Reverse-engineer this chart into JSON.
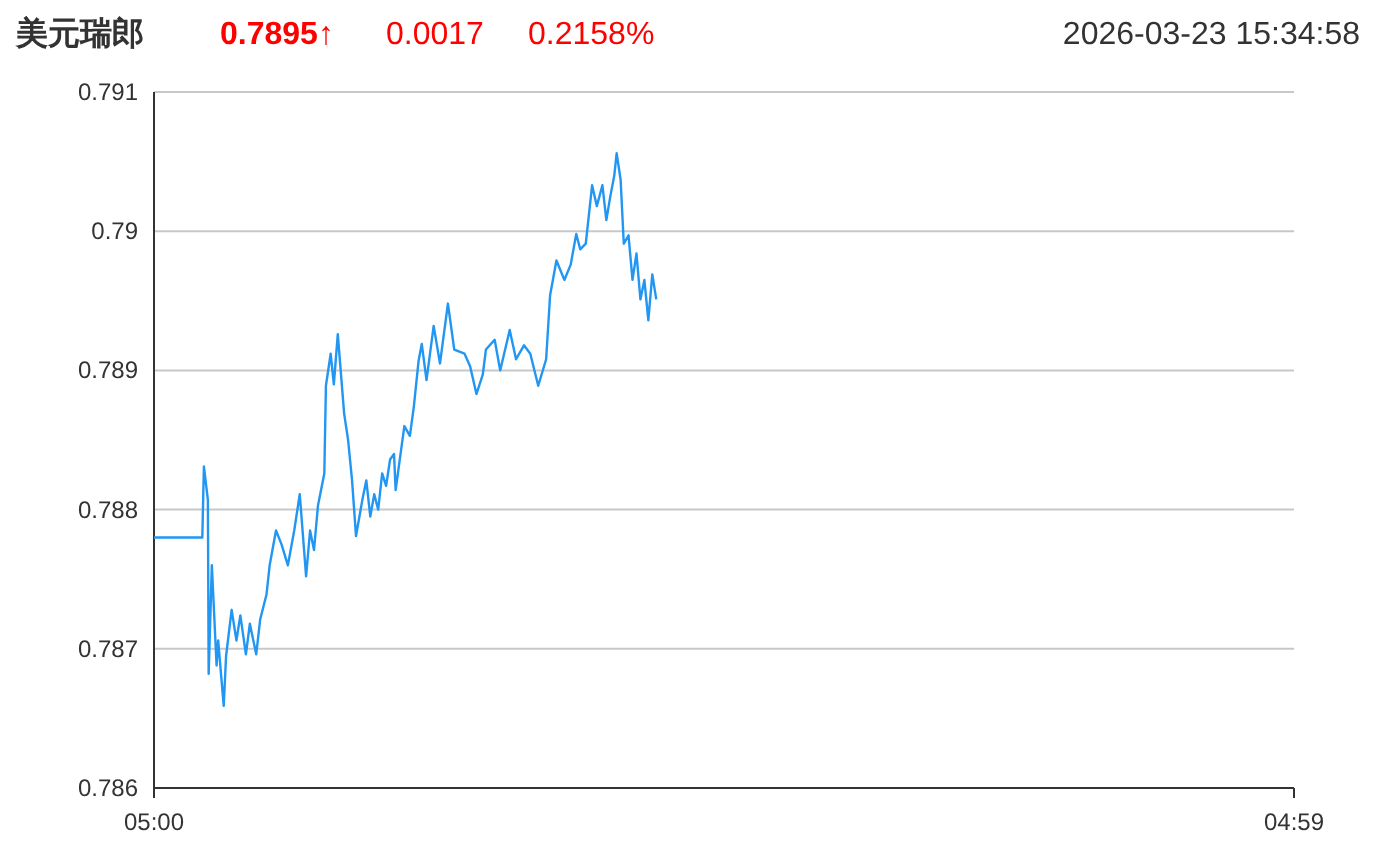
{
  "chart_data": {
    "type": "line",
    "title": "美元瑞郎",
    "annotations": [
      "0.7895↑",
      "0.0017",
      "0.2158%",
      "2026-03-23 15:34:58"
    ],
    "x": [
      "2026-03-23T05:00",
      "2026-03-23T06:01",
      "2026-03-23T06:03",
      "2026-03-23T06:08",
      "2026-03-23T06:09",
      "2026-03-23T06:13",
      "2026-03-23T06:19",
      "2026-03-23T06:21",
      "2026-03-23T06:28",
      "2026-03-23T06:31",
      "2026-03-23T06:38",
      "2026-03-23T06:44",
      "2026-03-23T06:49",
      "2026-03-23T06:56",
      "2026-03-23T07:01",
      "2026-03-23T07:09",
      "2026-03-23T07:14",
      "2026-03-23T07:22",
      "2026-03-23T07:26",
      "2026-03-23T07:34",
      "2026-03-23T07:41",
      "2026-03-23T07:49",
      "2026-03-23T07:57",
      "2026-03-23T08:04",
      "2026-03-23T08:12",
      "2026-03-23T08:17",
      "2026-03-23T08:22",
      "2026-03-23T08:27",
      "2026-03-23T08:35",
      "2026-03-23T08:37",
      "2026-03-23T08:43",
      "2026-03-23T08:47",
      "2026-03-23T08:52",
      "2026-03-23T09:00",
      "2026-03-23T09:05",
      "2026-03-23T09:10",
      "2026-03-23T09:15",
      "2026-03-23T09:23",
      "2026-03-23T09:28",
      "2026-03-23T09:33",
      "2026-03-23T09:38",
      "2026-03-23T09:43",
      "2026-03-23T09:48",
      "2026-03-23T09:53",
      "2026-03-23T09:58",
      "2026-03-23T10:03",
      "2026-03-23T10:05",
      "2026-03-23T10:16",
      "2026-03-23T10:23",
      "2026-03-23T10:28",
      "2026-03-23T10:34",
      "2026-03-23T10:38",
      "2026-03-23T10:44",
      "2026-03-23T10:53",
      "2026-03-23T11:01",
      "2026-03-23T11:11",
      "2026-03-23T11:19",
      "2026-03-23T11:32",
      "2026-03-23T11:39",
      "2026-03-23T11:47",
      "2026-03-23T11:55",
      "2026-03-23T11:59",
      "2026-03-23T12:10",
      "2026-03-23T12:17",
      "2026-03-23T12:29",
      "2026-03-23T12:37",
      "2026-03-23T12:47",
      "2026-03-23T12:55",
      "2026-03-23T13:05",
      "2026-03-23T13:15",
      "2026-03-23T13:20",
      "2026-03-23T13:28",
      "2026-03-23T13:38",
      "2026-03-23T13:46",
      "2026-03-23T13:53",
      "2026-03-23T13:58",
      "2026-03-23T14:05",
      "2026-03-23T14:13",
      "2026-03-23T14:19",
      "2026-03-23T14:26",
      "2026-03-23T14:31",
      "2026-03-23T14:36",
      "2026-03-23T14:41",
      "2026-03-23T14:44",
      "2026-03-23T14:49",
      "2026-03-23T14:53",
      "2026-03-23T14:59",
      "2026-03-23T15:04",
      "2026-03-23T15:09",
      "2026-03-23T15:14",
      "2026-03-23T15:19",
      "2026-03-23T15:24",
      "2026-03-23T15:29",
      "2026-03-23T15:34"
    ],
    "series": [
      {
        "color": "#2196f3",
        "values": [
          0.7878,
          0.7878,
          0.78831,
          0.78807,
          0.78682,
          0.7876,
          0.78688,
          0.78706,
          0.78659,
          0.78695,
          0.78728,
          0.78706,
          0.78724,
          0.78696,
          0.78718,
          0.78696,
          0.78721,
          0.78739,
          0.7876,
          0.78785,
          0.78775,
          0.7876,
          0.78785,
          0.78811,
          0.78752,
          0.78785,
          0.78771,
          0.78803,
          0.78826,
          0.78889,
          0.78912,
          0.7889,
          0.78926,
          0.78869,
          0.7885,
          0.78821,
          0.78781,
          0.78807,
          0.78821,
          0.78795,
          0.78811,
          0.788,
          0.78826,
          0.78817,
          0.78836,
          0.7884,
          0.78814,
          0.7886,
          0.78853,
          0.78874,
          0.78907,
          0.78919,
          0.78893,
          0.78932,
          0.78905,
          0.78948,
          0.78915,
          0.78912,
          0.78903,
          0.78883,
          0.78897,
          0.78915,
          0.78922,
          0.789,
          0.78929,
          0.78908,
          0.78918,
          0.78912,
          0.78889,
          0.78908,
          0.78954,
          0.78979,
          0.78965,
          0.78976,
          0.78998,
          0.78987,
          0.78991,
          0.79033,
          0.79018,
          0.79033,
          0.79008,
          0.79025,
          0.7904,
          0.79056,
          0.79037,
          0.78991,
          0.78997,
          0.78965,
          0.78984,
          0.78951,
          0.78965,
          0.78936,
          0.78969,
          0.78951
        ]
      }
    ],
    "xlim": [
      "2026-03-23T05:00",
      "2026-03-24T04:59"
    ],
    "xticks": [
      {
        "value": "2026-03-23T05:00",
        "label": "05:00"
      },
      {
        "value": "2026-03-24T04:59",
        "label": "04:59"
      }
    ],
    "ylim": [
      0.786,
      0.791
    ],
    "yticks": [
      0.786,
      0.787,
      0.788,
      0.789,
      0.79,
      0.791
    ],
    "grid": "y",
    "marker": "none",
    "line_style": "solid"
  }
}
